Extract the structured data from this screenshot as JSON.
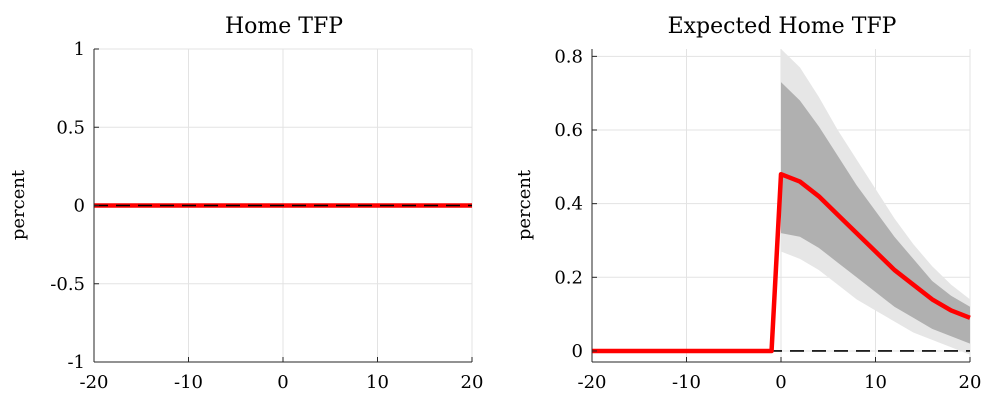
{
  "chart_data": [
    {
      "type": "line",
      "title": "Home TFP",
      "xlabel": "",
      "ylabel": "percent",
      "xlim": [
        -20,
        20
      ],
      "ylim": [
        -1,
        1
      ],
      "grid": true,
      "xticks": [
        -20,
        -10,
        0,
        10,
        20
      ],
      "xtick_labels": [
        "-20",
        "-10",
        "0",
        "10",
        "20"
      ],
      "yticks": [
        -1,
        -0.5,
        0,
        0.5,
        1
      ],
      "ytick_labels": [
        "-1",
        "-0.5",
        "0",
        "0.5",
        "1"
      ],
      "x": [
        -20,
        20
      ],
      "series": [
        {
          "values": [
            0,
            0
          ],
          "color": "#ff0000",
          "style": "solid"
        },
        {
          "values": [
            0,
            0
          ],
          "color": "#000000",
          "style": "dashed"
        }
      ],
      "bands": []
    },
    {
      "type": "area",
      "title": "Expected Home TFP",
      "xlabel": "",
      "ylabel": "percent",
      "xlim": [
        -20,
        20
      ],
      "ylim": [
        -0.03,
        0.82
      ],
      "grid": true,
      "xticks": [
        -20,
        -10,
        0,
        10,
        20
      ],
      "xtick_labels": [
        "-20",
        "-10",
        "0",
        "10",
        "20"
      ],
      "yticks": [
        0,
        0.2,
        0.4,
        0.6,
        0.8
      ],
      "ytick_labels": [
        "0",
        "0.2",
        "0.4",
        "0.6",
        "0.8"
      ],
      "x": [
        -20,
        -1,
        0,
        2,
        4,
        6,
        8,
        10,
        12,
        14,
        16,
        18,
        20
      ],
      "series": [
        {
          "values": [
            0,
            0,
            0.48,
            0.46,
            0.42,
            0.37,
            0.32,
            0.27,
            0.22,
            0.18,
            0.14,
            0.11,
            0.09
          ],
          "color": "#ff0000",
          "style": "solid"
        },
        {
          "values": [
            0,
            0,
            0,
            0,
            0,
            0,
            0,
            0,
            0,
            0,
            0,
            0,
            0
          ],
          "color": "#000000",
          "style": "dashed"
        }
      ],
      "bands": [
        {
          "color": "#e6e6e6",
          "x": [
            0,
            2,
            4,
            6,
            8,
            10,
            12,
            14,
            16,
            18,
            20
          ],
          "upper": [
            0.82,
            0.77,
            0.69,
            0.6,
            0.52,
            0.44,
            0.36,
            0.29,
            0.23,
            0.18,
            0.14
          ],
          "lower": [
            0.27,
            0.25,
            0.22,
            0.18,
            0.14,
            0.11,
            0.08,
            0.05,
            0.03,
            0.01,
            -0.01
          ]
        },
        {
          "color": "#b0b0b0",
          "x": [
            0,
            2,
            4,
            6,
            8,
            10,
            12,
            14,
            16,
            18,
            20
          ],
          "upper": [
            0.73,
            0.68,
            0.61,
            0.53,
            0.45,
            0.38,
            0.31,
            0.25,
            0.19,
            0.15,
            0.12
          ],
          "lower": [
            0.32,
            0.31,
            0.28,
            0.24,
            0.2,
            0.16,
            0.12,
            0.09,
            0.06,
            0.04,
            0.02
          ]
        }
      ]
    }
  ]
}
